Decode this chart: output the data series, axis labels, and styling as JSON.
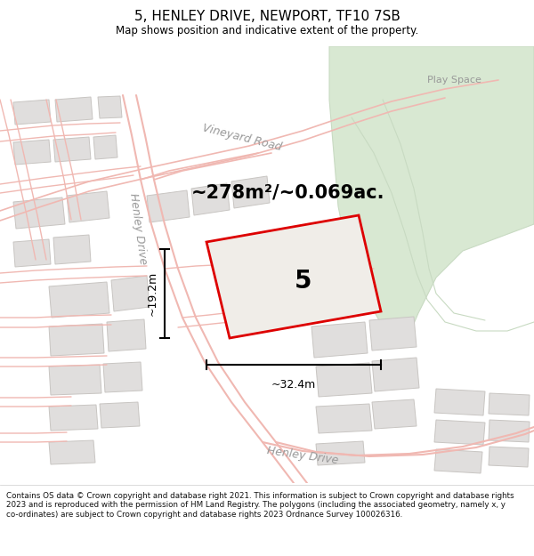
{
  "title": "5, HENLEY DRIVE, NEWPORT, TF10 7SB",
  "subtitle": "Map shows position and indicative extent of the property.",
  "area_text": "~278m²/~0.069ac.",
  "width_label": "~32.4m",
  "height_label": "~19.2m",
  "property_number": "5",
  "play_space_label": "Play Space",
  "vineyard_road_label": "Vineyard Road",
  "henley_drive_label1": "Henley Drive",
  "henley_drive_label2": "Henley Drive",
  "footer_text": "Contains OS data © Crown copyright and database right 2021. This information is subject to Crown copyright and database rights 2023 and is reproduced with the permission of HM Land Registry. The polygons (including the associated geometry, namely x, y co-ordinates) are subject to Crown copyright and database rights 2023 Ordnance Survey 100026316.",
  "road_line_color": "#f0b8b2",
  "building_fill": "#e0dedd",
  "building_edge": "#c8c5c2",
  "green_fill": "#d8e8d2",
  "green_edge": "#c8dac2",
  "map_bg": "#f5f2ee",
  "property_fill": "#f0ede8",
  "property_border": "#dd0000"
}
